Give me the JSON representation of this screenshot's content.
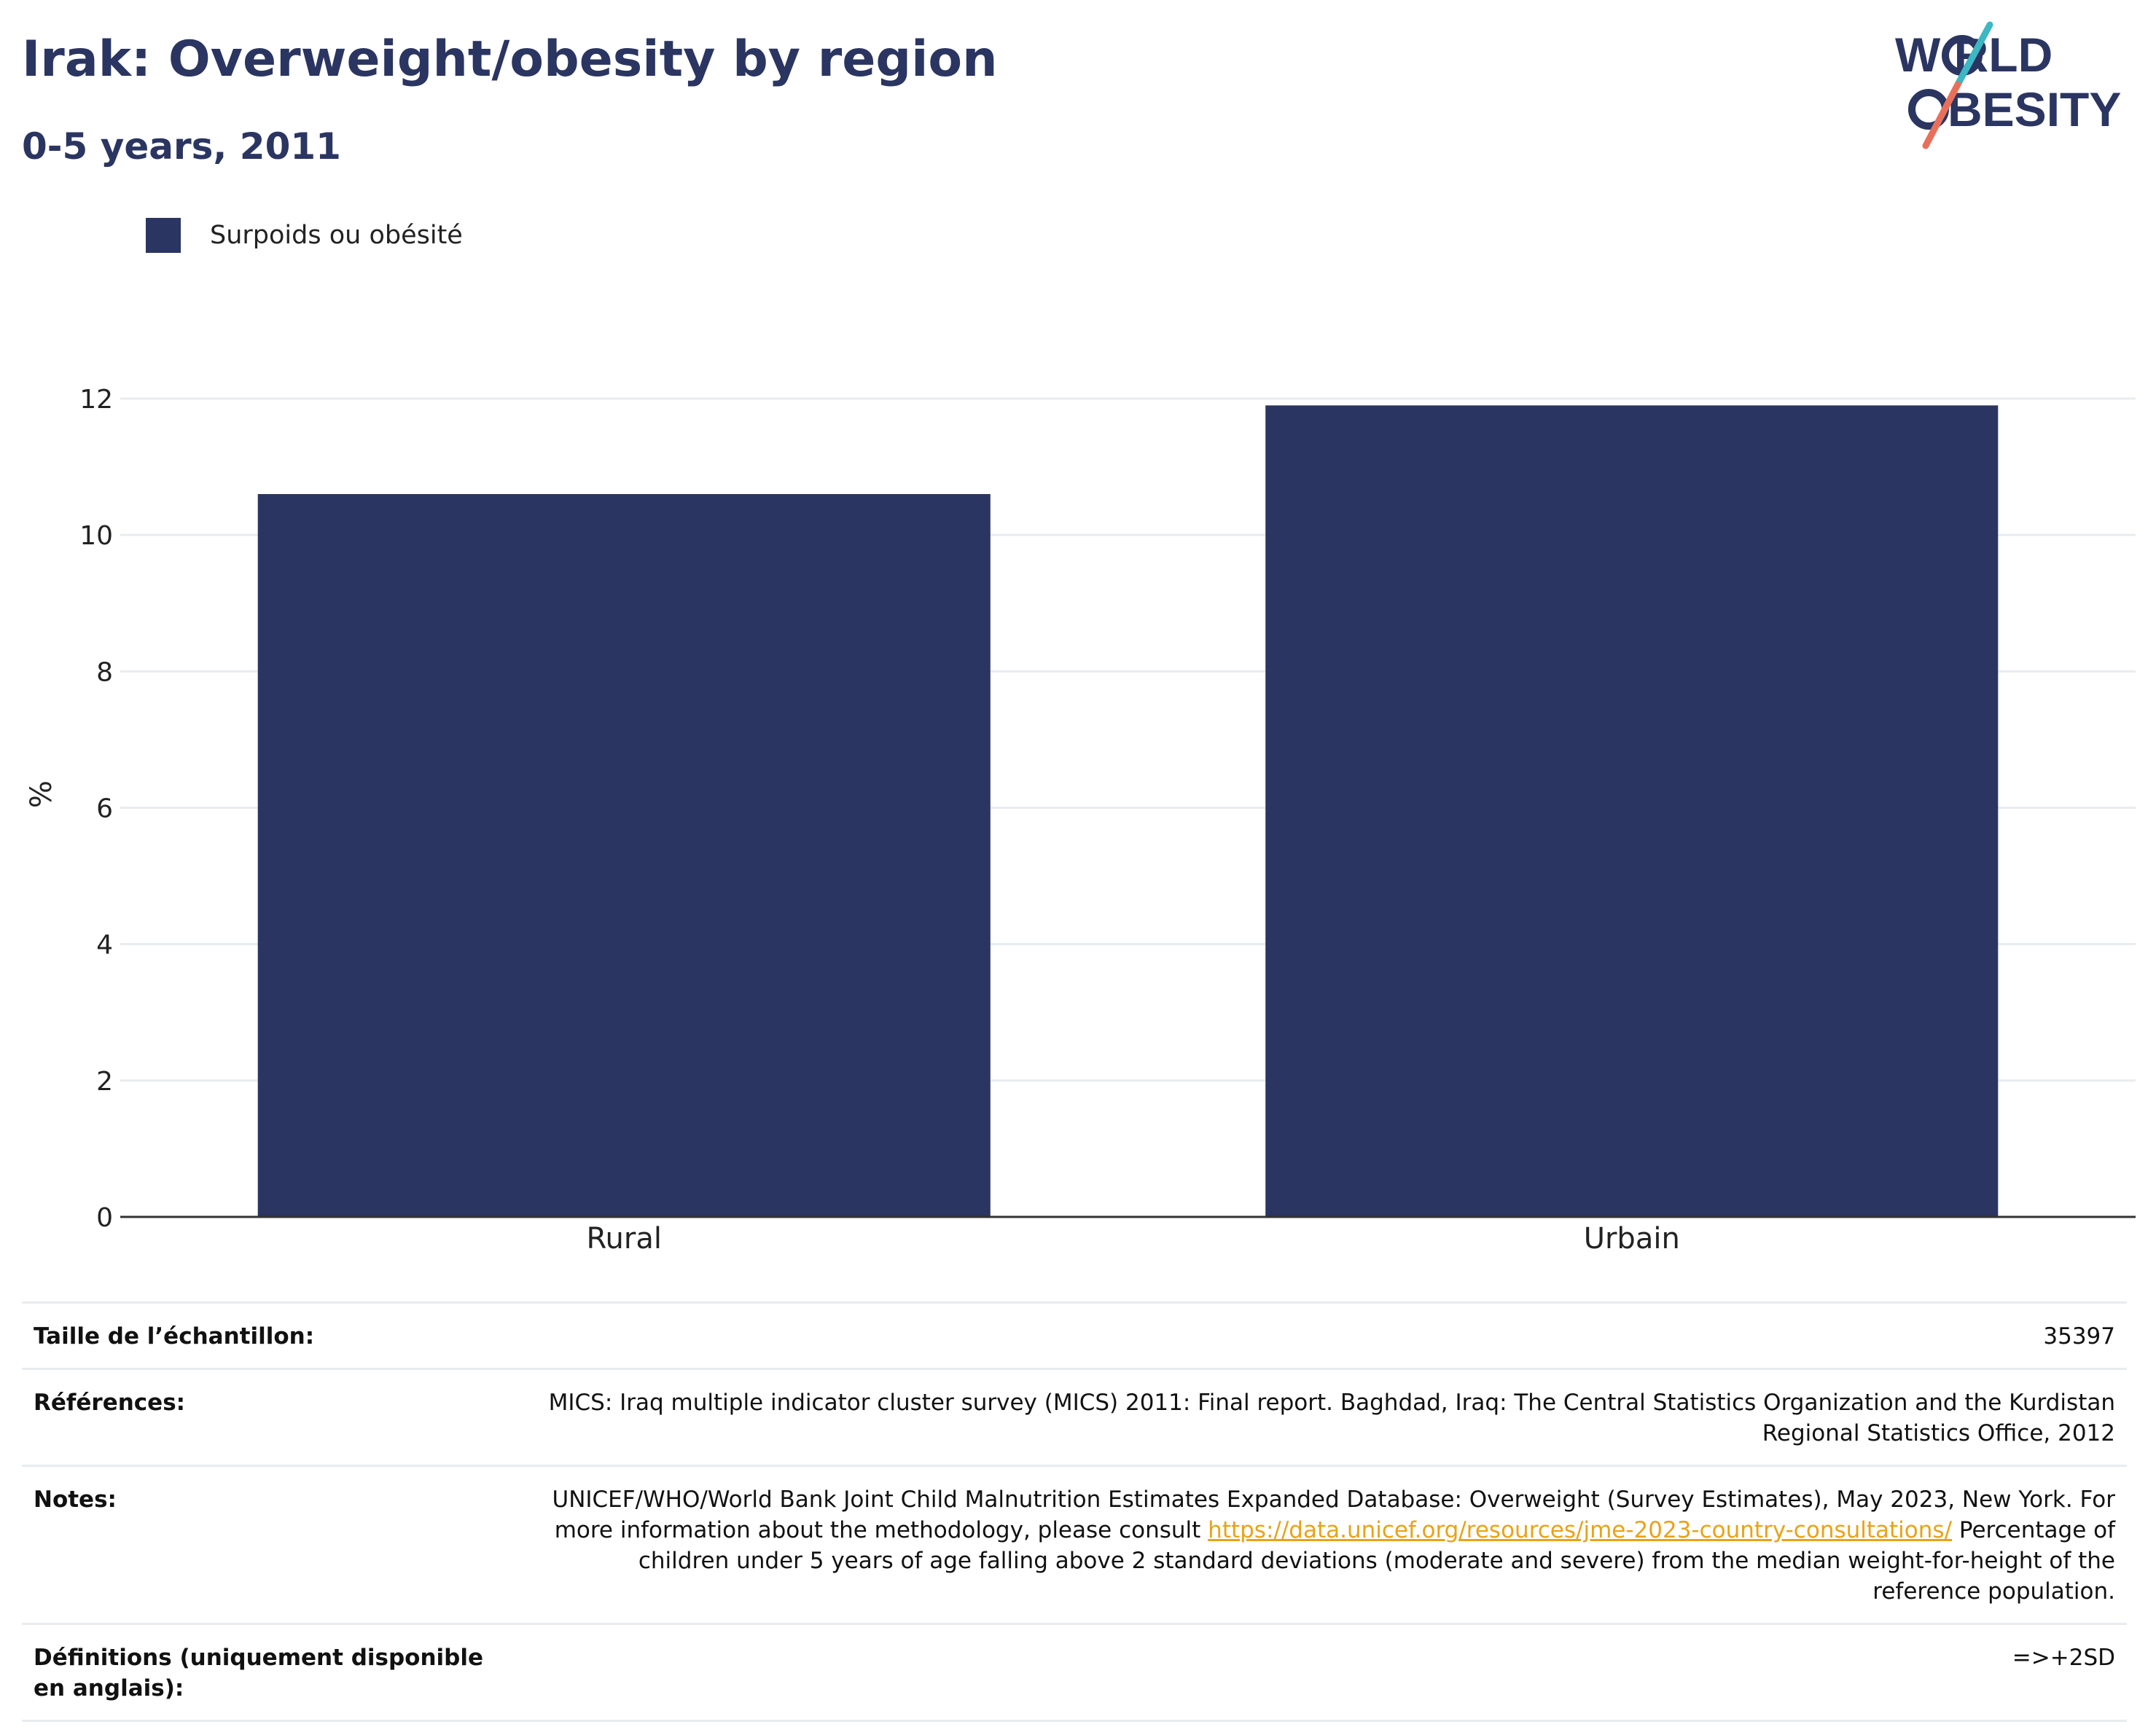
{
  "header": {
    "title": "Irak: Overweight/obesity by region",
    "subtitle": "0-5 years, 2011"
  },
  "logo": {
    "line1": "W RLD",
    "line2": "BESITY",
    "colors": {
      "text": "#2a3561",
      "slash_top": "#3bb8c3",
      "slash_bottom": "#e8705a"
    }
  },
  "legend": {
    "label": "Surpoids ou obésité",
    "color": "#2a3561"
  },
  "chart_data": {
    "type": "bar",
    "categories": [
      "Rural",
      "Urbain"
    ],
    "series": [
      {
        "name": "Surpoids ou obésité",
        "values": [
          10.6,
          11.9
        ],
        "color": "#2a3561"
      }
    ],
    "ylabel": "%",
    "xlabel": "",
    "ylim": [
      0,
      12
    ],
    "yticks": [
      0,
      2,
      4,
      6,
      8,
      10,
      12
    ],
    "grid": true,
    "legend_position": "top-left"
  },
  "info": {
    "sample_size_label": "Taille de l’échantillon:",
    "sample_size_value": "35397",
    "references_label": "Références:",
    "references_value": "MICS: Iraq multiple indicator cluster survey (MICS) 2011: Final report. Baghdad, Iraq: The Central Statistics Organization and the Kurdistan Regional Statistics Office, 2012",
    "notes_label": "Notes:",
    "notes_text_before": "UNICEF/WHO/World Bank Joint Child Malnutrition Estimates Expanded Database: Overweight (Survey Estimates), May 2023, New York. For more information about the methodology, please consult ",
    "notes_link": "https://data.unicef.org/resources/jme-2023-country-consultations/",
    "notes_text_after": " Percentage of children under 5 years of age falling above 2 standard deviations (moderate and severe) from the median weight-for-height of the reference population.",
    "definitions_label": "Définitions (uniquement disponible en anglais):",
    "definitions_value": "=>+2SD"
  }
}
